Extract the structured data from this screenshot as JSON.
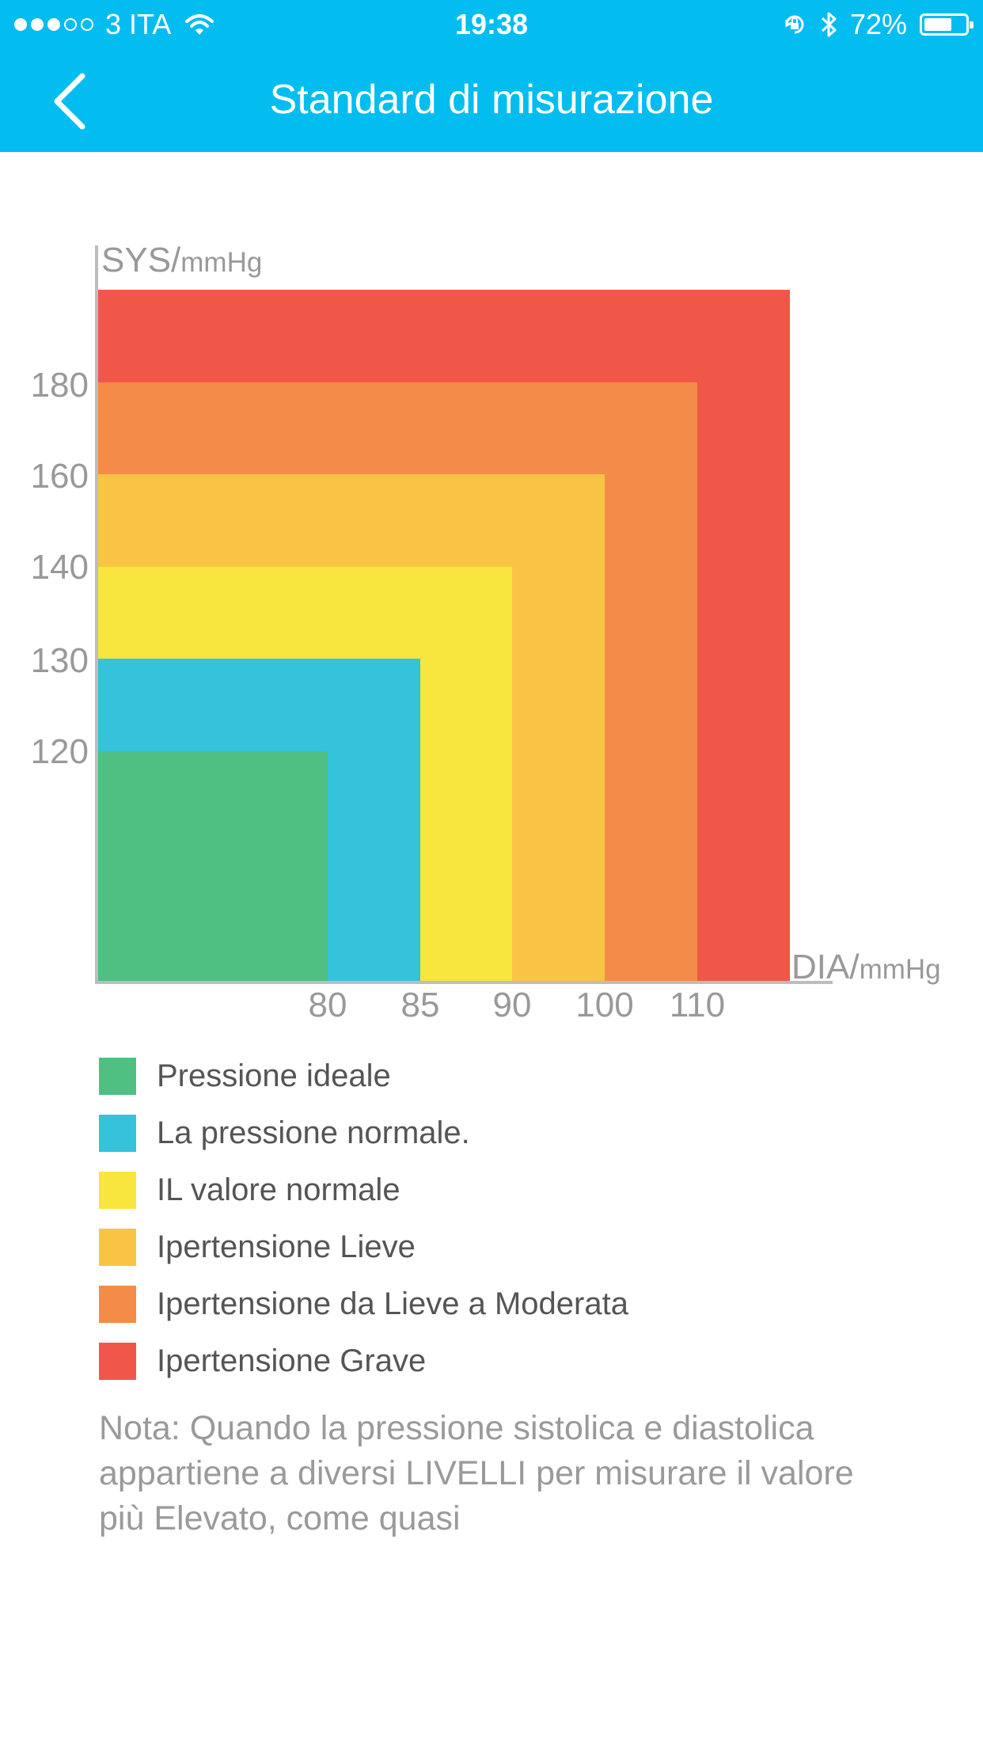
{
  "status_bar": {
    "signal_dots_filled": 3,
    "signal_dots_total": 5,
    "carrier": "3 ITA",
    "time": "19:38",
    "battery_pct": "72%",
    "battery_level": 0.72,
    "icons": [
      "wifi-icon",
      "orientation-lock-icon",
      "bluetooth-icon",
      "battery-icon"
    ]
  },
  "header": {
    "title": "Standard di misurazione",
    "back_icon": "chevron-left-icon",
    "background": "#03bdf1"
  },
  "chart_data": {
    "type": "area",
    "y_axis_label": "SYS/",
    "y_axis_unit": "mmHg",
    "x_axis_label": "DIA/",
    "x_axis_unit": "mmHg",
    "y_ticks": [
      "180",
      "160",
      "140",
      "130",
      "120"
    ],
    "x_ticks": [
      "80",
      "85",
      "90",
      "100",
      "110"
    ],
    "zones": [
      {
        "name": "Ipertensione Grave",
        "sys_max": null,
        "dia_max": null,
        "color": "#f15749"
      },
      {
        "name": "Ipertensione da Lieve a Moderata",
        "sys_max": 180,
        "dia_max": 110,
        "color": "#f28c48"
      },
      {
        "name": "Ipertensione Lieve",
        "sys_max": 160,
        "dia_max": 100,
        "color": "#f9c443"
      },
      {
        "name": "IL valore normale",
        "sys_max": 140,
        "dia_max": 90,
        "color": "#f8e53e"
      },
      {
        "name": "La pressione normale.",
        "sys_max": 130,
        "dia_max": 85,
        "color": "#34c3da"
      },
      {
        "name": "Pressione ideale",
        "sys_max": 120,
        "dia_max": 80,
        "color": "#4fbf82"
      }
    ]
  },
  "legend": [
    {
      "label": "Pressione ideale",
      "color": "#4fbf82"
    },
    {
      "label": "La pressione normale.",
      "color": "#34c3da"
    },
    {
      "label": "IL valore normale",
      "color": "#f8e53e"
    },
    {
      "label": "Ipertensione Lieve",
      "color": "#f9c443"
    },
    {
      "label": "Ipertensione da Lieve a Moderata",
      "color": "#f28c48"
    },
    {
      "label": "Ipertensione Grave",
      "color": "#f15749"
    }
  ],
  "note": "Nota: Quando la pressione sistolica e diastolica appartiene a diversi LIVELLI per misurare il valore più Elevato, come quasi"
}
